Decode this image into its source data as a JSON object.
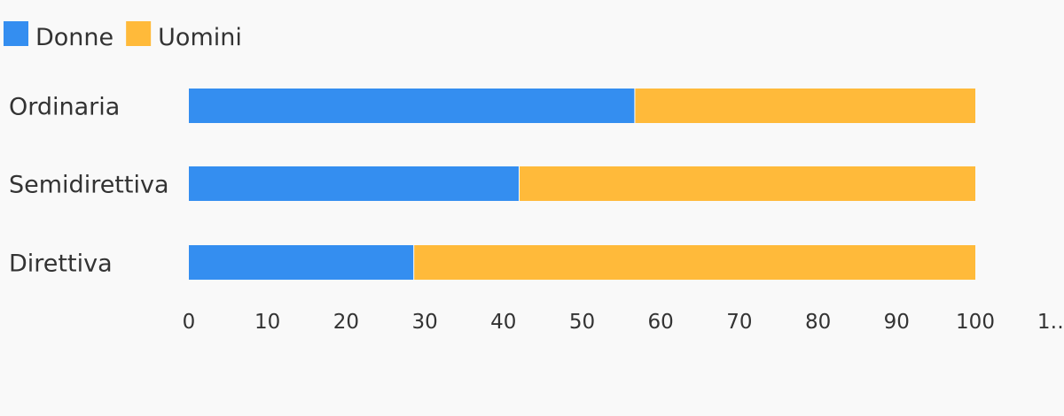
{
  "chart_data": {
    "type": "bar",
    "orientation": "horizontal",
    "stacked": true,
    "categories": [
      "Ordinaria",
      "Semidirettiva",
      "Direttiva"
    ],
    "series": [
      {
        "name": "Donne",
        "values": [
          56.7,
          42.0,
          28.6
        ],
        "color": "#348ef0"
      },
      {
        "name": "Uomini",
        "values": [
          43.3,
          58.0,
          71.4
        ],
        "color": "#ffba3a"
      }
    ],
    "xlim": [
      0,
      110
    ],
    "x_ticks": [
      "0",
      "10",
      "20",
      "30",
      "40",
      "50",
      "60",
      "70",
      "80",
      "90",
      "100",
      "1…"
    ],
    "legend_position": "top-left",
    "grid": false
  }
}
